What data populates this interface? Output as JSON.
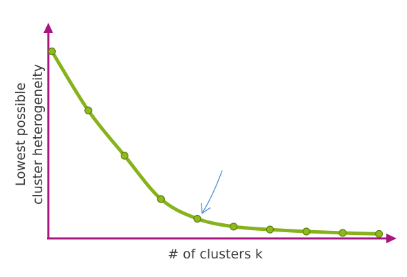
{
  "chart_data": {
    "type": "line",
    "xlabel": "# of clusters k",
    "ylabel": [
      "Lowest possible",
      "cluster heterogeneity"
    ],
    "x": [
      1,
      2,
      3,
      4,
      5,
      6,
      7,
      8,
      9,
      10
    ],
    "values": [
      95,
      65,
      42,
      20,
      10,
      6,
      4.5,
      3.5,
      2.8,
      2.3
    ],
    "ylim": [
      0,
      105
    ],
    "xlim": [
      0.9,
      10.2
    ],
    "ticks": false,
    "grid": false,
    "annotation": "arrow-pointing-at-elbow",
    "elbow_x": 5,
    "colors": {
      "axes": "#a8167f",
      "line": "#86b21b",
      "marker_fill": "#8dbb1a",
      "marker_stroke": "#5c7d10",
      "arrow": "#4a8fd6"
    }
  }
}
